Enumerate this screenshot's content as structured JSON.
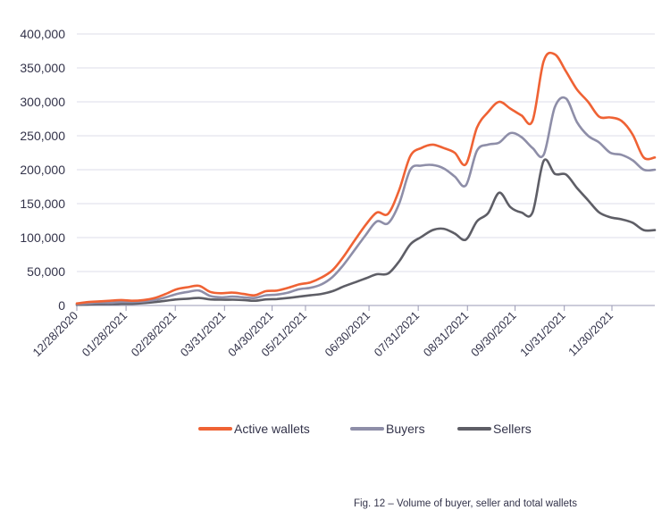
{
  "chart_data": {
    "type": "line",
    "title": "",
    "xlabel": "",
    "ylabel": "",
    "ylim": [
      0,
      400000
    ],
    "yticks": [
      "400,000",
      "350,000",
      "300,000",
      "250,000",
      "200,000",
      "150,000",
      "100,000",
      "50,000",
      "0"
    ],
    "ytick_values": [
      400000,
      350000,
      300000,
      250000,
      200000,
      150000,
      100000,
      50000,
      0
    ],
    "xlim": [
      "2020-12-28",
      "2021-12-27"
    ],
    "xtick_labels": [
      "12/28/2020",
      "01/28/2021",
      "02/28/2021",
      "03/31/2021",
      "04/30/2021",
      "05/21/2021",
      "06/30/2021",
      "07/31/2021",
      "08/31/2021",
      "09/30/2021",
      "10/31/2021",
      "11/30/2021"
    ],
    "xtick_dates": [
      "2020-12-28",
      "2021-01-28",
      "2021-02-28",
      "2021-03-31",
      "2021-04-30",
      "2021-05-21",
      "2021-06-30",
      "2021-07-31",
      "2021-08-31",
      "2021-09-30",
      "2021-10-31",
      "2021-11-30"
    ],
    "grid": true,
    "legend_position": "bottom-center",
    "x": [
      "2020-12-28",
      "2021-01-04",
      "2021-01-11",
      "2021-01-18",
      "2021-01-25",
      "2021-02-01",
      "2021-02-08",
      "2021-02-15",
      "2021-02-22",
      "2021-03-01",
      "2021-03-08",
      "2021-03-15",
      "2021-03-22",
      "2021-03-29",
      "2021-04-05",
      "2021-04-12",
      "2021-04-19",
      "2021-04-26",
      "2021-05-03",
      "2021-05-10",
      "2021-05-17",
      "2021-05-24",
      "2021-05-31",
      "2021-06-07",
      "2021-06-14",
      "2021-06-21",
      "2021-06-28",
      "2021-07-05",
      "2021-07-12",
      "2021-07-19",
      "2021-07-26",
      "2021-08-02",
      "2021-08-09",
      "2021-08-16",
      "2021-08-23",
      "2021-08-30",
      "2021-09-06",
      "2021-09-13",
      "2021-09-20",
      "2021-09-27",
      "2021-10-04",
      "2021-10-11",
      "2021-10-18",
      "2021-10-25",
      "2021-11-01",
      "2021-11-08",
      "2021-11-15",
      "2021-11-22",
      "2021-11-29",
      "2021-12-06",
      "2021-12-13",
      "2021-12-20",
      "2021-12-27"
    ],
    "series": [
      {
        "name": "Active wallets",
        "color": "#ef6234",
        "values": [
          3000,
          5000,
          6000,
          7000,
          8000,
          7000,
          8000,
          11000,
          17000,
          24000,
          27000,
          29000,
          20000,
          18000,
          19000,
          17000,
          15000,
          21000,
          22000,
          26000,
          31000,
          34000,
          41000,
          52000,
          72000,
          96000,
          119000,
          137000,
          135000,
          170000,
          220000,
          232000,
          237000,
          232000,
          225000,
          208000,
          262000,
          285000,
          300000,
          290000,
          280000,
          272000,
          360000,
          370000,
          345000,
          318000,
          300000,
          278000,
          277000,
          272000,
          252000,
          218000,
          218000
        ]
      },
      {
        "name": "Buyers",
        "color": "#8e8ea8",
        "values": [
          2000,
          3000,
          4000,
          4000,
          5000,
          5000,
          6000,
          8000,
          12000,
          17000,
          20000,
          22000,
          14000,
          12000,
          13000,
          12000,
          11000,
          15000,
          16000,
          19000,
          24000,
          26000,
          31000,
          42000,
          60000,
          82000,
          104000,
          124000,
          121000,
          150000,
          200000,
          206000,
          207000,
          202000,
          190000,
          177000,
          228000,
          237000,
          240000,
          254000,
          248000,
          232000,
          222000,
          292000,
          305000,
          270000,
          250000,
          240000,
          225000,
          222000,
          214000,
          200000,
          200000
        ]
      },
      {
        "name": "Sellers",
        "color": "#5e5e66",
        "values": [
          1000,
          1500,
          2000,
          2000,
          2500,
          2500,
          3500,
          5000,
          7000,
          9000,
          10000,
          11000,
          9000,
          8500,
          8500,
          8000,
          7000,
          9000,
          9500,
          11000,
          13000,
          15000,
          17000,
          21000,
          28000,
          34000,
          40000,
          46000,
          47000,
          65000,
          90000,
          101000,
          111000,
          113000,
          106000,
          97000,
          124000,
          136000,
          166000,
          145000,
          137000,
          137000,
          213000,
          194000,
          193000,
          173000,
          155000,
          137000,
          130000,
          127000,
          122000,
          111000,
          111000
        ]
      }
    ]
  },
  "caption": "Fig. 12 – Volume of buyer, seller and total wallets"
}
